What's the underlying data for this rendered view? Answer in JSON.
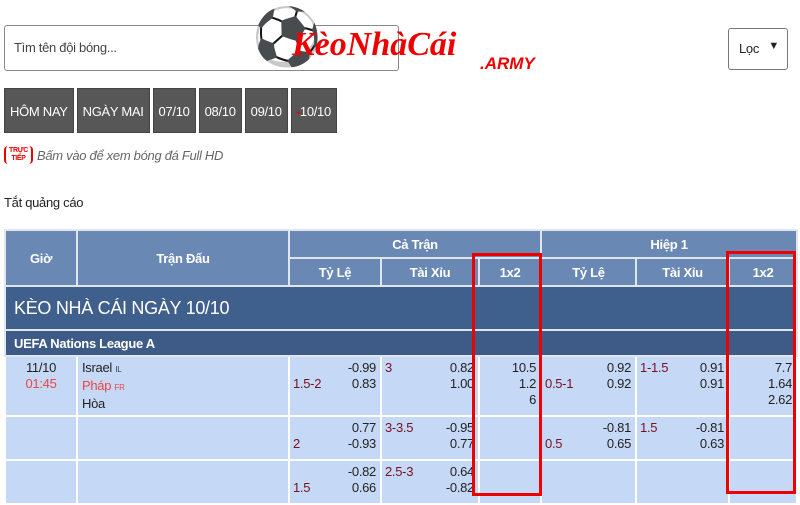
{
  "search": {
    "placeholder": "Tìm tên đội bóng..."
  },
  "logo": {
    "brand": "KèoNhàCái",
    "suffix": ".ARMY"
  },
  "filter": {
    "label": "Lọc",
    "caret": "▼"
  },
  "tabs": [
    "HÔM NAY",
    "NGÀY MAI",
    "07/10",
    "08/10",
    "09/10",
    "10/10"
  ],
  "active_tab_marker": "•",
  "live": {
    "badge_top": "TRỰC",
    "badge_bottom": "TIẾP",
    "text": "Bấm vào để xem bóng đá Full HD"
  },
  "ads_toggle": "Tắt quảng cáo",
  "table": {
    "headers": {
      "time": "Giờ",
      "match": "Trận Đấu",
      "full": "Cả Trận",
      "half": "Hiệp 1",
      "handicap": "Tỷ Lệ",
      "total": "Tài Xỉu",
      "x12": "1x2"
    },
    "section_title": "KÈO NHÀ CÁI NGÀY 10/10",
    "league": "UEFA Nations League A",
    "match": {
      "date": "11/10",
      "time": "01:45",
      "home": "Israel",
      "home_cc": "IL",
      "away": "Pháp",
      "away_cc": "FR",
      "draw": "Hòa"
    },
    "rows": [
      {
        "ft_hc": "1.5-2",
        "ft_hc_o1": "-0.99",
        "ft_hc_o2": "0.83",
        "ft_ou": "3",
        "ft_ou_o1": "0.82",
        "ft_ou_o2": "1.00",
        "ft_1": "10.5",
        "ft_2": "1.2",
        "ft_x": "6",
        "h1_hc": "0.5-1",
        "h1_hc_o1": "0.92",
        "h1_hc_o2": "0.92",
        "h1_ou": "1-1.5",
        "h1_ou_o1": "0.91",
        "h1_ou_o2": "0.91",
        "h1_1": "7.7",
        "h1_2": "1.64",
        "h1_x": "2.62"
      },
      {
        "ft_hc": "2",
        "ft_hc_o1": "0.77",
        "ft_hc_o2": "-0.93",
        "ft_ou": "3-3.5",
        "ft_ou_o1": "-0.95",
        "ft_ou_o2": "0.77",
        "h1_hc": "0.5",
        "h1_hc_o1": "-0.81",
        "h1_hc_o2": "0.65",
        "h1_ou": "1.5",
        "h1_ou_o1": "-0.81",
        "h1_ou_o2": "0.63"
      },
      {
        "ft_hc": "1.5",
        "ft_hc_o1": "-0.82",
        "ft_hc_o2": "0.66",
        "ft_ou": "2.5-3",
        "ft_ou_o1": "0.64",
        "ft_ou_o2": "-0.82"
      }
    ]
  },
  "colors": {
    "highlight_box": "#e00000",
    "header": "#6a88b4",
    "section": "#3f5f8c",
    "row": "#c5d9f7",
    "handicap_label": "#7a1020",
    "away_team": "#e44444"
  }
}
